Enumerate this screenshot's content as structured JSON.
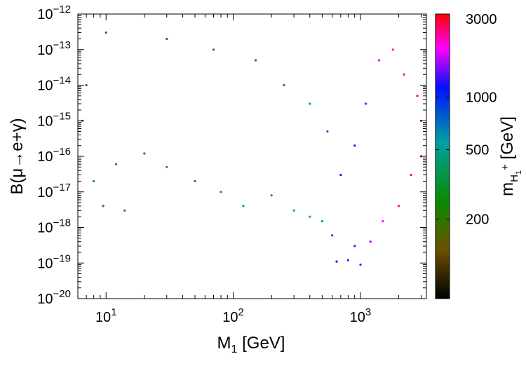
{
  "chart_data": {
    "type": "scatter",
    "x_scale": "log",
    "y_scale": "log",
    "xlim": [
      6,
      3300
    ],
    "ylim": [
      1e-20,
      1e-12
    ],
    "xlabel": {
      "main": "M",
      "sub": "1",
      "unit": " [GeV]"
    },
    "ylabel": "B(μ→e+γ)",
    "x_ticks": [
      {
        "value": 10,
        "base": "10",
        "exp": "1"
      },
      {
        "value": 100,
        "base": "10",
        "exp": "2"
      },
      {
        "value": 1000,
        "base": "10",
        "exp": "3"
      }
    ],
    "y_ticks": [
      {
        "value": 1e-20,
        "base": "10",
        "exp": "−20"
      },
      {
        "value": 1e-19,
        "base": "10",
        "exp": "−19"
      },
      {
        "value": 1e-18,
        "base": "10",
        "exp": "−18"
      },
      {
        "value": 1e-17,
        "base": "10",
        "exp": "−17"
      },
      {
        "value": 1e-16,
        "base": "10",
        "exp": "−16"
      },
      {
        "value": 1e-15,
        "base": "10",
        "exp": "−15"
      },
      {
        "value": 1e-14,
        "base": "10",
        "exp": "−14"
      },
      {
        "value": 1e-13,
        "base": "10",
        "exp": "−13"
      },
      {
        "value": 1e-12,
        "base": "10",
        "exp": "−12"
      }
    ],
    "colorbar": {
      "label": {
        "main": "m",
        "sub": "H",
        "subsub": "1",
        "sup": "+",
        "unit": " [GeV]"
      },
      "scale": "log",
      "range": [
        70,
        3000
      ],
      "ticks": [
        200,
        500,
        1000,
        3000
      ],
      "tick_labels": [
        "200",
        "500",
        "1000",
        "3000"
      ],
      "colors": [
        "#000000",
        "#6b5000",
        "#0a8a00",
        "#00a0a0",
        "#0010ff",
        "#ff00ff",
        "#ff0000"
      ]
    },
    "series": [
      {
        "name": "scan points",
        "description_note": "dense scan; points below estimated",
        "points": [
          [
            9.5,
            4e-18,
            250
          ],
          [
            14,
            3e-18,
            240
          ],
          [
            12,
            6e-17,
            260
          ],
          [
            8,
            2e-17,
            300
          ],
          [
            20,
            1.2e-16,
            280
          ],
          [
            30,
            5e-17,
            320
          ],
          [
            50,
            2e-17,
            300
          ],
          [
            80,
            1e-17,
            350
          ],
          [
            120,
            4e-18,
            380
          ],
          [
            200,
            8e-18,
            400
          ],
          [
            300,
            3e-18,
            420
          ],
          [
            400,
            2e-18,
            450
          ],
          [
            500,
            1.5e-18,
            500
          ],
          [
            600,
            6e-19,
            700
          ],
          [
            650,
            1.1e-19,
            900
          ],
          [
            800,
            1.2e-19,
            1000
          ],
          [
            1000,
            9e-20,
            1100
          ],
          [
            900,
            3e-19,
            1000
          ],
          [
            1200,
            4e-19,
            1300
          ],
          [
            1500,
            1.5e-18,
            1600
          ],
          [
            2000,
            4e-18,
            2000
          ],
          [
            2500,
            3e-17,
            2400
          ],
          [
            3000,
            1e-16,
            2800
          ],
          [
            3000,
            1e-15,
            2900
          ],
          [
            2800,
            5e-15,
            2700
          ],
          [
            2200,
            2e-14,
            2100
          ],
          [
            1800,
            1e-13,
            1900
          ],
          [
            1400,
            5e-14,
            1500
          ],
          [
            1100,
            3e-15,
            1200
          ],
          [
            900,
            2e-16,
            950
          ],
          [
            700,
            3e-17,
            800
          ],
          [
            550,
            5e-16,
            600
          ],
          [
            400,
            3e-15,
            450
          ],
          [
            250,
            1e-14,
            300
          ],
          [
            150,
            5e-14,
            250
          ],
          [
            70,
            1e-13,
            220
          ],
          [
            30,
            2e-13,
            200
          ],
          [
            10,
            3e-13,
            180
          ],
          [
            7,
            1e-14,
            150
          ],
          [
            6.5,
            1e-15,
            240
          ]
        ]
      }
    ]
  }
}
